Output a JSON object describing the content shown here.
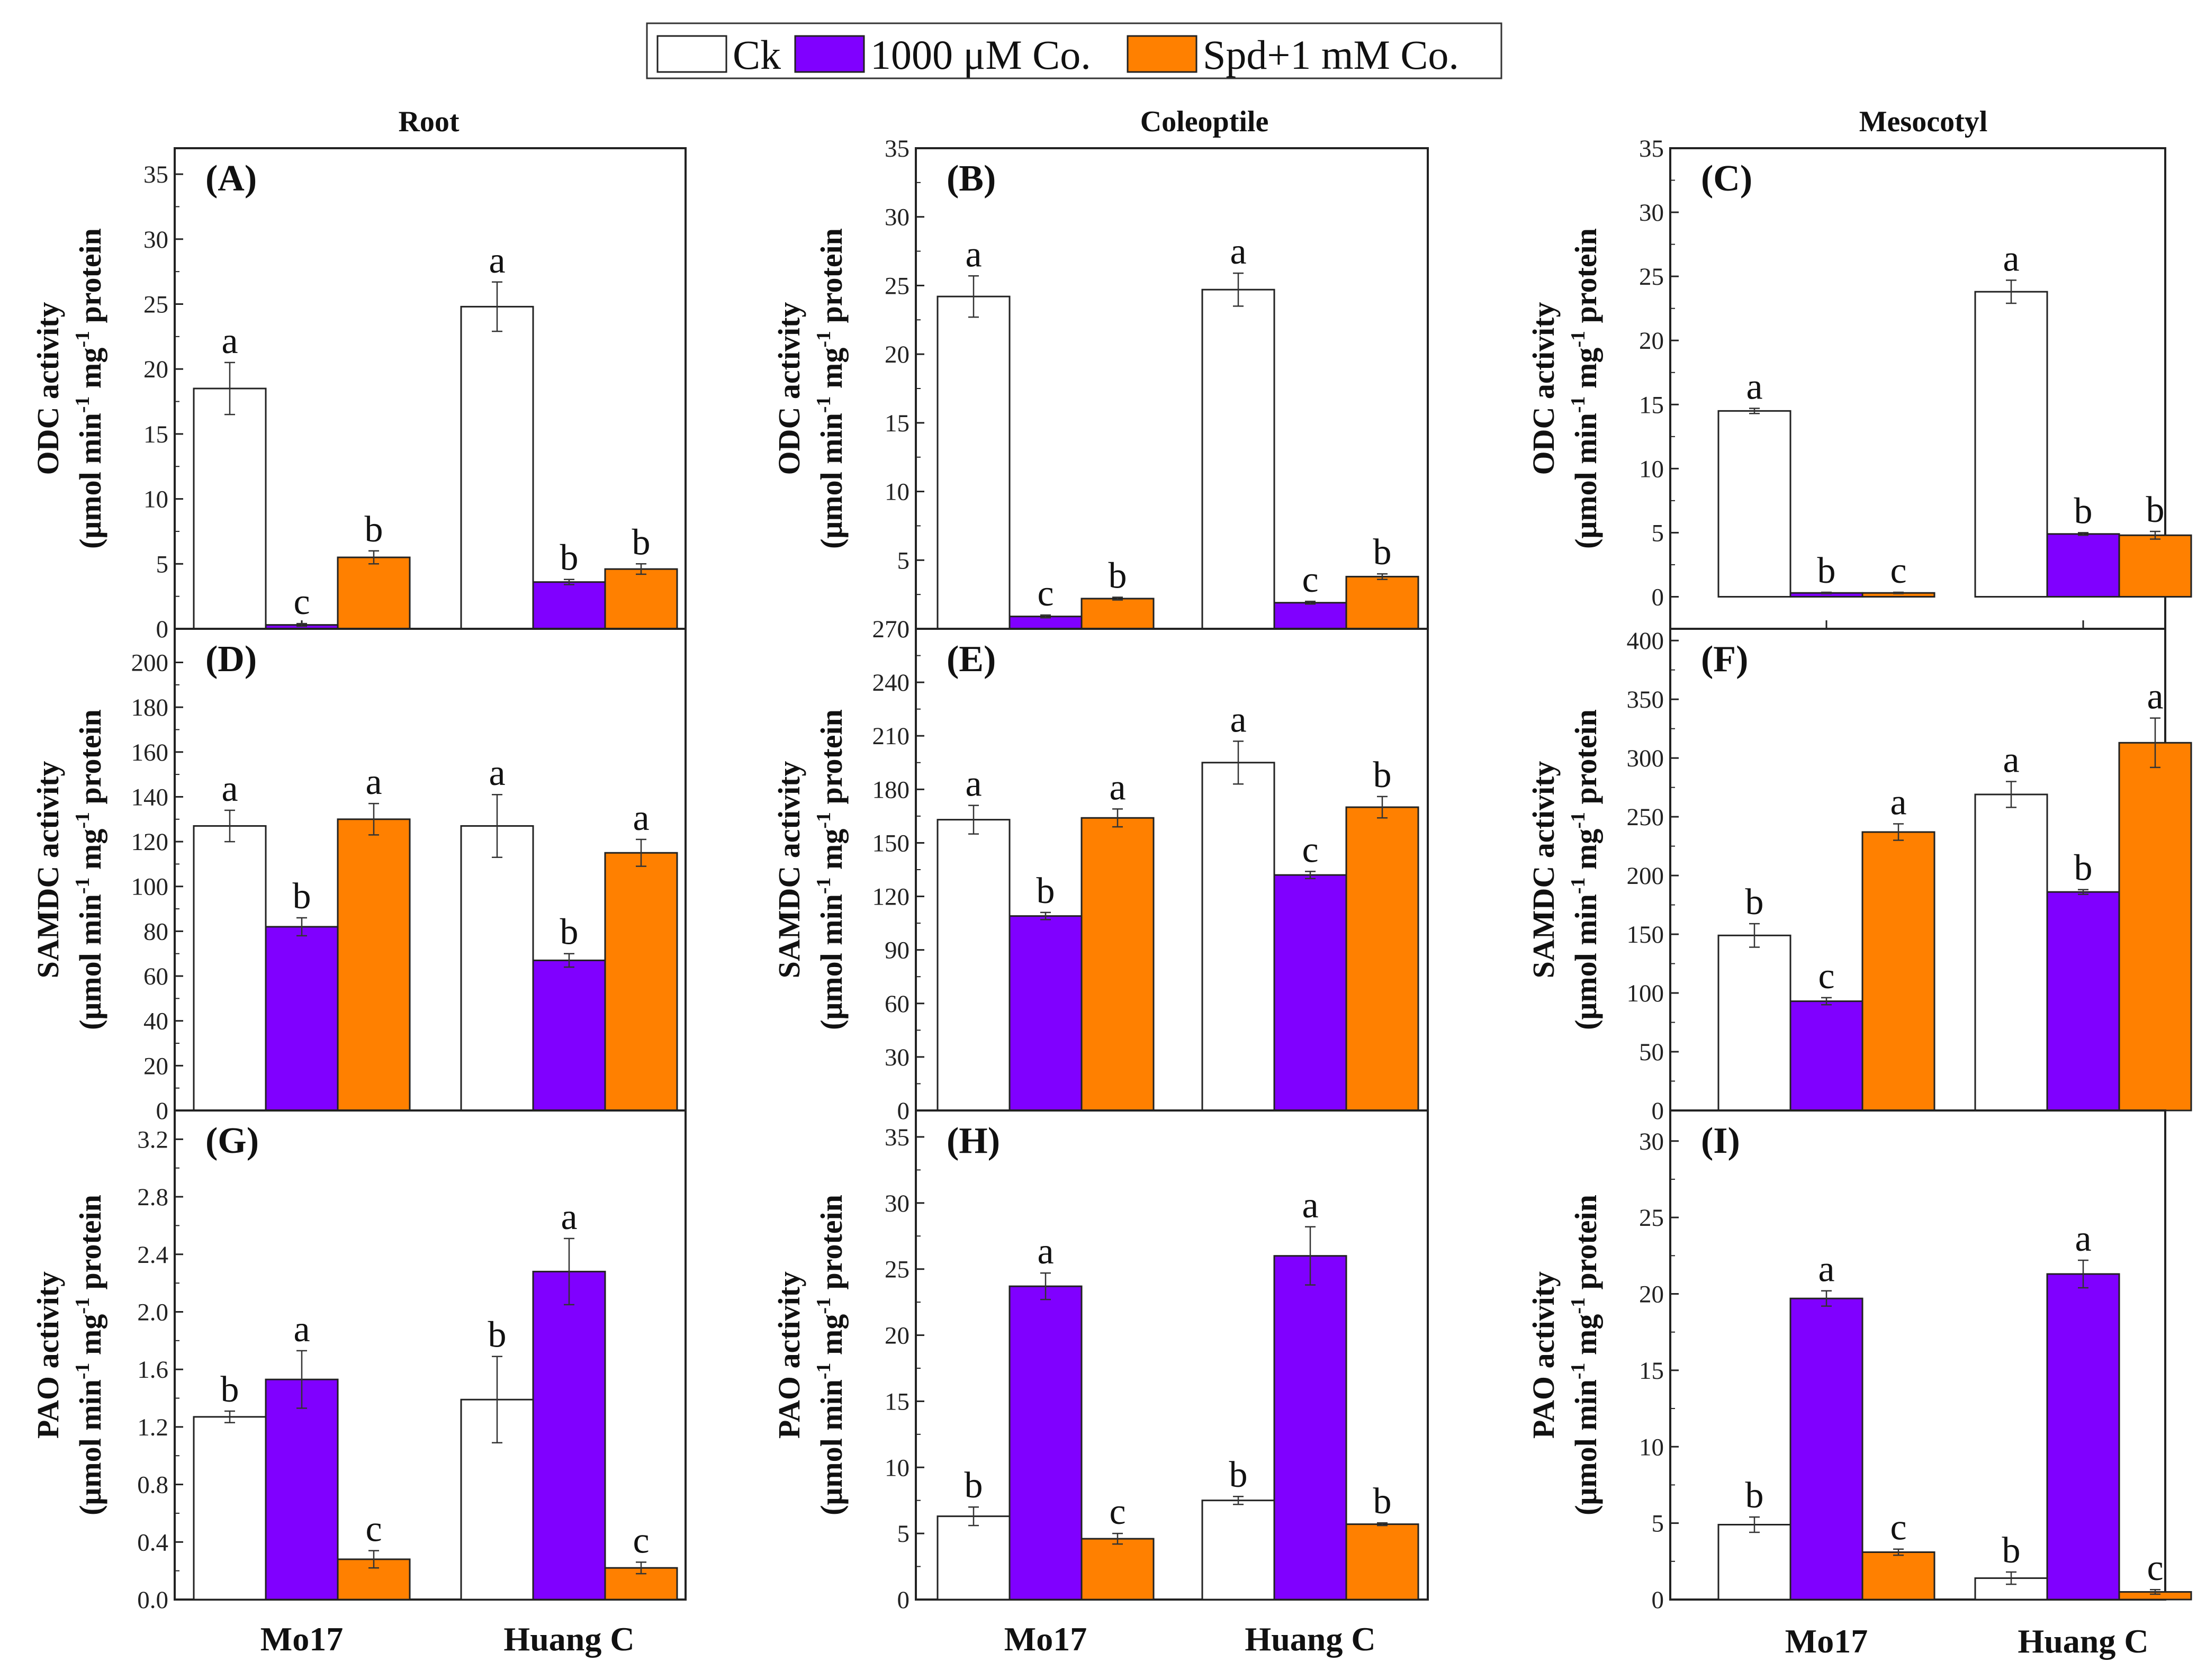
{
  "legend": [
    {
      "label": "Ck",
      "color": "#ffffff"
    },
    {
      "label": "1000 μM Co.",
      "color": "#8000ff"
    },
    {
      "label": "Spd+1 mM Co.",
      "color": "#ff8000"
    }
  ],
  "column_titles": [
    "Root",
    "Coleoptile",
    "Mesocotyl"
  ],
  "categories": [
    "Mo17",
    "Huang C"
  ],
  "chart_data": [
    {
      "type": "bar",
      "panel": "(A)",
      "row": 0,
      "col": 0,
      "ylabel_main": "ODC activity",
      "ylim": [
        0,
        37
      ],
      "yticks": [
        0,
        5,
        10,
        15,
        20,
        25,
        30,
        35
      ],
      "categories": [
        "Mo17",
        "Huang C"
      ],
      "series": [
        {
          "name": "Ck",
          "values": [
            18.5,
            24.8
          ],
          "errors": [
            2.0,
            1.9
          ],
          "letters": [
            "a",
            "a"
          ]
        },
        {
          "name": "1000 μM Co.",
          "values": [
            0.3,
            3.6
          ],
          "errors": [
            0.1,
            0.2
          ],
          "letters": [
            "c",
            "b"
          ]
        },
        {
          "name": "Spd+1 mM Co.",
          "values": [
            5.5,
            4.6
          ],
          "errors": [
            0.5,
            0.4
          ],
          "letters": [
            "b",
            "b"
          ]
        }
      ]
    },
    {
      "type": "bar",
      "panel": "(B)",
      "row": 0,
      "col": 1,
      "ylabel_main": "ODC activity",
      "ylim": [
        0,
        35
      ],
      "yticks": [
        0,
        5,
        10,
        15,
        20,
        25,
        30,
        35
      ],
      "categories": [
        "Mo17",
        "Huang C"
      ],
      "series": [
        {
          "name": "Ck",
          "values": [
            24.2,
            24.7
          ],
          "errors": [
            1.5,
            1.2
          ],
          "letters": [
            "a",
            "a"
          ]
        },
        {
          "name": "1000 μM Co.",
          "values": [
            0.9,
            1.9
          ],
          "errors": [
            0.1,
            0.1
          ],
          "letters": [
            "c",
            "c"
          ]
        },
        {
          "name": "Spd+1 mM Co.",
          "values": [
            2.2,
            3.8
          ],
          "errors": [
            0.1,
            0.2
          ],
          "letters": [
            "b",
            "b"
          ]
        }
      ]
    },
    {
      "type": "bar",
      "panel": "(C)",
      "row": 0,
      "col": 2,
      "ylabel_main": "ODC activity",
      "ylim": [
        -2.5,
        35
      ],
      "yticks": [
        0,
        5,
        10,
        15,
        20,
        25,
        30,
        35
      ],
      "categories": [
        "Mo17",
        "Huang C"
      ],
      "series": [
        {
          "name": "Ck",
          "values": [
            14.5,
            23.8
          ],
          "errors": [
            0.2,
            0.9
          ],
          "letters": [
            "a",
            "a"
          ]
        },
        {
          "name": "1000 μM Co.",
          "values": [
            0.3,
            4.9
          ],
          "errors": [
            0.05,
            0.1
          ],
          "letters": [
            "b",
            "b"
          ]
        },
        {
          "name": "Spd+1 mM Co.",
          "values": [
            0.3,
            4.8
          ],
          "errors": [
            0.05,
            0.3
          ],
          "letters": [
            "c",
            "b"
          ]
        }
      ]
    },
    {
      "type": "bar",
      "panel": "(D)",
      "row": 1,
      "col": 0,
      "ylabel_main": "SAMDC activity",
      "ylim": [
        0,
        215
      ],
      "yticks": [
        0,
        20,
        40,
        60,
        80,
        100,
        120,
        140,
        160,
        180,
        200
      ],
      "categories": [
        "Mo17",
        "Huang C"
      ],
      "series": [
        {
          "name": "Ck",
          "values": [
            127,
            127
          ],
          "errors": [
            7,
            14
          ],
          "letters": [
            "a",
            "a"
          ]
        },
        {
          "name": "1000 μM Co.",
          "values": [
            82,
            67
          ],
          "errors": [
            4,
            3
          ],
          "letters": [
            "b",
            "b"
          ]
        },
        {
          "name": "Spd+1 mM Co.",
          "values": [
            130,
            115
          ],
          "errors": [
            7,
            6
          ],
          "letters": [
            "a",
            "a"
          ]
        }
      ]
    },
    {
      "type": "bar",
      "panel": "(E)",
      "row": 1,
      "col": 1,
      "ylabel_main": "SAMDC activity",
      "ylim": [
        0,
        270
      ],
      "yticks": [
        0,
        30,
        60,
        90,
        120,
        150,
        180,
        210,
        240,
        270
      ],
      "categories": [
        "Mo17",
        "Huang C"
      ],
      "series": [
        {
          "name": "Ck",
          "values": [
            163,
            195
          ],
          "errors": [
            8,
            12
          ],
          "letters": [
            "a",
            "a"
          ]
        },
        {
          "name": "1000 μM Co.",
          "values": [
            109,
            132
          ],
          "errors": [
            2,
            2
          ],
          "letters": [
            "b",
            "c"
          ]
        },
        {
          "name": "Spd+1 mM Co.",
          "values": [
            164,
            170
          ],
          "errors": [
            5,
            6
          ],
          "letters": [
            "a",
            "b"
          ]
        }
      ]
    },
    {
      "type": "bar",
      "panel": "(F)",
      "row": 1,
      "col": 2,
      "ylabel_main": "SAMDC activity",
      "ylim": [
        0,
        410
      ],
      "yticks": [
        0,
        50,
        100,
        150,
        200,
        250,
        300,
        350,
        400
      ],
      "categories": [
        "Mo17",
        "Huang C"
      ],
      "series": [
        {
          "name": "Ck",
          "values": [
            149,
            269
          ],
          "errors": [
            10,
            11
          ],
          "letters": [
            "b",
            "a"
          ]
        },
        {
          "name": "1000 μM Co.",
          "values": [
            93,
            186
          ],
          "errors": [
            3,
            2
          ],
          "letters": [
            "c",
            "b"
          ]
        },
        {
          "name": "Spd+1 mM Co.",
          "values": [
            237,
            313
          ],
          "errors": [
            7,
            21
          ],
          "letters": [
            "a",
            "a"
          ]
        }
      ]
    },
    {
      "type": "bar",
      "panel": "(G)",
      "row": 2,
      "col": 0,
      "ylabel_main": "PAO activity",
      "ylim": [
        0,
        3.4
      ],
      "yticks": [
        0.0,
        0.4,
        0.8,
        1.2,
        1.6,
        2.0,
        2.4,
        2.8,
        3.2
      ],
      "decimals": 1,
      "categories": [
        "Mo17",
        "Huang C"
      ],
      "series": [
        {
          "name": "Ck",
          "values": [
            1.27,
            1.39
          ],
          "errors": [
            0.04,
            0.3
          ],
          "letters": [
            "b",
            "b"
          ]
        },
        {
          "name": "1000 μM Co.",
          "values": [
            1.53,
            2.28
          ],
          "errors": [
            0.2,
            0.23
          ],
          "letters": [
            "a",
            "a"
          ]
        },
        {
          "name": "Spd+1 mM Co.",
          "values": [
            0.28,
            0.22
          ],
          "errors": [
            0.06,
            0.04
          ],
          "letters": [
            "c",
            "c"
          ]
        }
      ]
    },
    {
      "type": "bar",
      "panel": "(H)",
      "row": 2,
      "col": 1,
      "ylabel_main": "PAO activity",
      "ylim": [
        0,
        37
      ],
      "yticks": [
        0,
        5,
        10,
        15,
        20,
        25,
        30,
        35
      ],
      "categories": [
        "Mo17",
        "Huang C"
      ],
      "series": [
        {
          "name": "Ck",
          "values": [
            6.3,
            7.5
          ],
          "errors": [
            0.7,
            0.3
          ],
          "letters": [
            "b",
            "b"
          ]
        },
        {
          "name": "1000 μM Co.",
          "values": [
            23.7,
            26.0
          ],
          "errors": [
            1.0,
            2.2
          ],
          "letters": [
            "a",
            "a"
          ]
        },
        {
          "name": "Spd+1 mM Co.",
          "values": [
            4.6,
            5.7
          ],
          "errors": [
            0.4,
            0.1
          ],
          "letters": [
            "c",
            "b"
          ]
        }
      ]
    },
    {
      "type": "bar",
      "panel": "(I)",
      "row": 2,
      "col": 2,
      "ylabel_main": "PAO activity",
      "ylim": [
        0,
        32
      ],
      "yticks": [
        0,
        5,
        10,
        15,
        20,
        25,
        30
      ],
      "categories": [
        "Mo17",
        "Huang C"
      ],
      "series": [
        {
          "name": "Ck",
          "values": [
            4.9,
            1.4
          ],
          "errors": [
            0.5,
            0.4
          ],
          "letters": [
            "b",
            "b"
          ]
        },
        {
          "name": "1000 μM Co.",
          "values": [
            19.7,
            21.3
          ],
          "errors": [
            0.5,
            0.9
          ],
          "letters": [
            "a",
            "a"
          ]
        },
        {
          "name": "Spd+1 mM Co.",
          "values": [
            3.1,
            0.5
          ],
          "errors": [
            0.2,
            0.15
          ],
          "letters": [
            "c",
            "c"
          ]
        }
      ]
    }
  ],
  "ylabel_unit": {
    "prefix": "(μmol min",
    "exp1": "-1",
    "mid": " mg",
    "exp2": "-1",
    "suffix": " protein"
  }
}
